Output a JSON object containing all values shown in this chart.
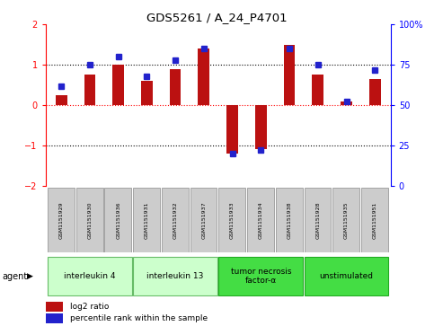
{
  "title": "GDS5261 / A_24_P4701",
  "samples": [
    "GSM1151929",
    "GSM1151930",
    "GSM1151936",
    "GSM1151931",
    "GSM1151932",
    "GSM1151937",
    "GSM1151933",
    "GSM1151934",
    "GSM1151938",
    "GSM1151928",
    "GSM1151935",
    "GSM1151951"
  ],
  "log2_ratio": [
    0.25,
    0.75,
    1.0,
    0.6,
    0.9,
    1.4,
    -1.2,
    -1.1,
    1.5,
    0.75,
    0.1,
    0.65
  ],
  "percentile_rank": [
    62,
    75,
    80,
    68,
    78,
    85,
    20,
    22,
    85,
    75,
    52,
    72
  ],
  "ylim": [
    -2,
    2
  ],
  "y2lim": [
    0,
    100
  ],
  "yticks": [
    -2,
    -1,
    0,
    1,
    2
  ],
  "y2ticks": [
    0,
    25,
    50,
    75,
    100
  ],
  "dotted_lines_black": [
    -1,
    1
  ],
  "dotted_line_red": 0,
  "bar_color": "#bb1111",
  "blue_color": "#2222cc",
  "bar_width": 0.4,
  "agent_groups": [
    {
      "label": "interleukin 4",
      "start": 0,
      "end": 2,
      "color": "#ccffcc",
      "border": "#66bb66"
    },
    {
      "label": "interleukin 13",
      "start": 3,
      "end": 5,
      "color": "#ccffcc",
      "border": "#66bb66"
    },
    {
      "label": "tumor necrosis\nfactor-α",
      "start": 6,
      "end": 8,
      "color": "#44dd44",
      "border": "#22aa22"
    },
    {
      "label": "unstimulated",
      "start": 9,
      "end": 11,
      "color": "#44dd44",
      "border": "#22aa22"
    }
  ],
  "legend_items": [
    {
      "label": "log2 ratio",
      "color": "#bb1111"
    },
    {
      "label": "percentile rank within the sample",
      "color": "#2222cc"
    }
  ],
  "agent_label": "agent",
  "bg_color": "#ffffff",
  "plot_bg_color": "#ffffff",
  "sample_bg_color": "#cccccc",
  "sample_border_color": "#999999"
}
